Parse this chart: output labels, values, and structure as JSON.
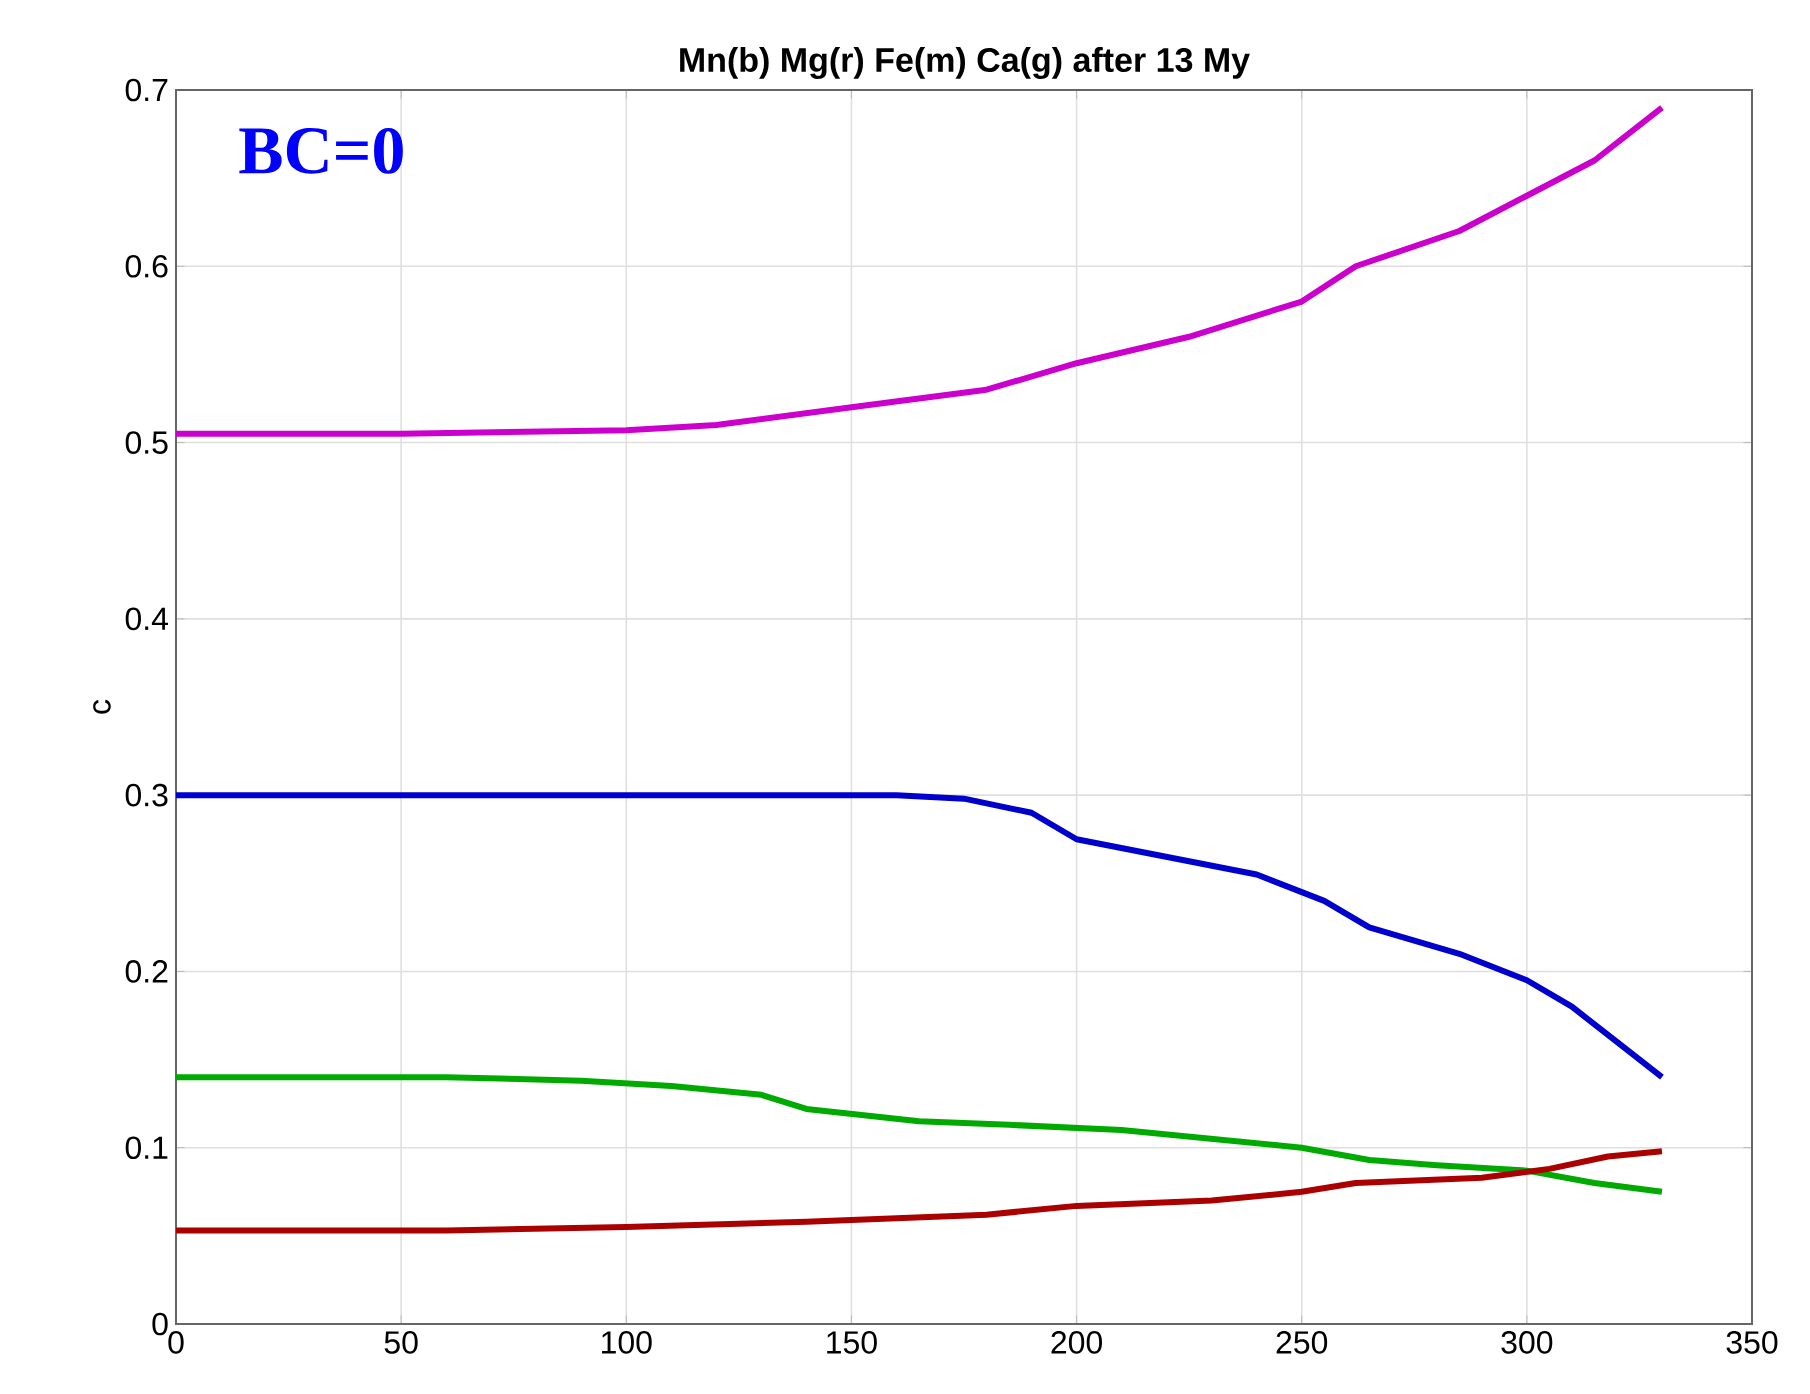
{
  "chart_data": {
    "type": "line",
    "title": "Mn(b) Mg(r) Fe(m) Ca(g) after 13 My",
    "ylabel": "c",
    "annotations": [
      "BC=0"
    ],
    "series": [
      {
        "color": "#cc00cc",
        "x": [
          0,
          50,
          100,
          120,
          150,
          180,
          200,
          225,
          250,
          262,
          285,
          300,
          315,
          330
        ],
        "values": [
          0.505,
          0.505,
          0.507,
          0.51,
          0.52,
          0.53,
          0.545,
          0.56,
          0.58,
          0.6,
          0.62,
          0.64,
          0.66,
          0.69
        ]
      },
      {
        "color": "#0000cc",
        "x": [
          0,
          100,
          160,
          175,
          190,
          200,
          220,
          240,
          255,
          265,
          285,
          300,
          310,
          320,
          330
        ],
        "values": [
          0.3,
          0.3,
          0.3,
          0.298,
          0.29,
          0.275,
          0.265,
          0.255,
          0.24,
          0.225,
          0.21,
          0.195,
          0.18,
          0.16,
          0.14
        ]
      },
      {
        "color": "#00aa00",
        "x": [
          0,
          60,
          90,
          110,
          130,
          140,
          165,
          185,
          210,
          230,
          250,
          265,
          280,
          300,
          315,
          330
        ],
        "values": [
          0.14,
          0.14,
          0.138,
          0.135,
          0.13,
          0.122,
          0.115,
          0.113,
          0.11,
          0.105,
          0.1,
          0.093,
          0.09,
          0.087,
          0.08,
          0.075
        ]
      },
      {
        "color": "#aa0000",
        "x": [
          0,
          60,
          100,
          140,
          180,
          200,
          230,
          250,
          262,
          290,
          305,
          318,
          330
        ],
        "values": [
          0.053,
          0.053,
          0.055,
          0.058,
          0.062,
          0.067,
          0.07,
          0.075,
          0.08,
          0.083,
          0.088,
          0.095,
          0.098
        ]
      }
    ],
    "xlim": [
      0,
      350
    ],
    "ylim": [
      0,
      0.7
    ],
    "xticks": [
      0,
      50,
      100,
      150,
      200,
      250,
      300,
      350
    ],
    "yticks": [
      0,
      0.1,
      0.2,
      0.3,
      0.4,
      0.5,
      0.6,
      0.7
    ],
    "grid": true
  }
}
